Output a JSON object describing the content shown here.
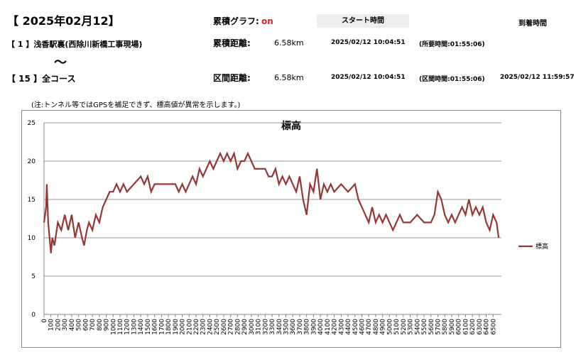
{
  "header": {
    "date": "【 2025年02月12】",
    "graph_label": "累積グラフ:",
    "graph_state": "on",
    "start_label": "スタート時間",
    "arrival_label": "到着時間"
  },
  "row1": {
    "course": "【 1 】浅香駅裏(西除川新橋工事現場)",
    "distance_label": "累積距離:",
    "distance": "6.58km",
    "start": "2025/02/12 10:04:51",
    "duration": "(所要時間:01:55:06)"
  },
  "tilde": "〜",
  "row2": {
    "course": "【 15 】全コース",
    "distance_label": "区間距離:",
    "distance": "6.58km",
    "start": "2025/02/12 10:04:51",
    "duration": "(区間時間:01:55:06)",
    "arrival": "2025/02/12 11:59:57"
  },
  "note": "(注:トンネル等ではGPSを補足できず、標高値が異常を示します。)",
  "chart_data": {
    "type": "line",
    "title": "標高",
    "x": [
      0,
      30,
      40,
      60,
      80,
      100,
      120,
      150,
      200,
      250,
      300,
      350,
      400,
      450,
      500,
      550,
      580,
      620,
      650,
      700,
      750,
      800,
      850,
      900,
      950,
      1000,
      1050,
      1100,
      1150,
      1200,
      1300,
      1400,
      1450,
      1500,
      1550,
      1600,
      1700,
      1800,
      1900,
      1950,
      2000,
      2050,
      2100,
      2150,
      2200,
      2250,
      2300,
      2350,
      2400,
      2450,
      2500,
      2550,
      2600,
      2650,
      2700,
      2750,
      2800,
      2850,
      2900,
      2950,
      3000,
      3050,
      3100,
      3150,
      3200,
      3250,
      3300,
      3350,
      3400,
      3450,
      3500,
      3550,
      3600,
      3650,
      3700,
      3750,
      3800,
      3850,
      3900,
      3950,
      4000,
      4050,
      4100,
      4150,
      4200,
      4300,
      4400,
      4500,
      4550,
      4600,
      4650,
      4700,
      4750,
      4800,
      4850,
      4900,
      4950,
      5000,
      5050,
      5100,
      5150,
      5200,
      5300,
      5400,
      5500,
      5600,
      5650,
      5700,
      5750,
      5800,
      5850,
      5900,
      5950,
      6000,
      6050,
      6100,
      6150,
      6200,
      6250,
      6300,
      6350,
      6400,
      6450,
      6500,
      6550,
      6580
    ],
    "series": [
      {
        "name": "標高",
        "color": "#953735",
        "values": [
          12,
          14,
          17,
          12,
          10,
          8,
          10,
          9,
          12,
          11,
          13,
          11,
          13,
          10,
          12,
          10,
          9,
          11,
          12,
          11,
          13,
          12,
          14,
          15,
          16,
          16,
          17,
          16,
          17,
          16,
          17,
          18,
          17,
          18,
          16,
          17,
          17,
          17,
          17,
          16,
          17,
          16,
          17,
          18,
          17,
          19,
          18,
          19,
          20,
          19,
          20,
          21,
          20,
          21,
          20,
          21,
          19,
          20,
          20,
          21,
          20,
          19,
          19,
          19,
          19,
          18,
          18,
          19,
          17,
          18,
          17,
          18,
          17,
          16,
          18,
          15,
          13,
          17,
          16,
          19,
          15,
          17,
          16,
          17,
          16,
          17,
          16,
          17,
          15,
          14,
          13,
          12,
          14,
          12,
          13,
          12,
          13,
          12,
          11,
          12,
          13,
          12,
          12,
          13,
          12,
          12,
          13,
          16,
          15,
          13,
          12,
          13,
          12,
          13,
          14,
          13,
          15,
          13,
          14,
          13,
          14,
          12,
          11,
          13,
          12,
          10
        ]
      }
    ],
    "xlim": [
      0,
      6620
    ],
    "ylim": [
      0,
      25
    ],
    "xticks": [
      0,
      100,
      200,
      300,
      400,
      500,
      600,
      700,
      800,
      900,
      1000,
      1100,
      1200,
      1300,
      1400,
      1500,
      1600,
      1700,
      1800,
      1900,
      2000,
      2100,
      2200,
      2300,
      2400,
      2500,
      2600,
      2700,
      2800,
      2900,
      3000,
      3100,
      3200,
      3300,
      3400,
      3500,
      3600,
      3700,
      3800,
      3900,
      4000,
      4100,
      4200,
      4300,
      4400,
      4500,
      4600,
      4700,
      4800,
      4900,
      5000,
      5100,
      5200,
      5300,
      5400,
      5500,
      5600,
      5700,
      5800,
      5900,
      6000,
      6100,
      6200,
      6300,
      6400,
      6500
    ],
    "yticks": [
      0,
      5,
      10,
      15,
      20,
      25
    ],
    "grid": true,
    "legend": "right"
  }
}
